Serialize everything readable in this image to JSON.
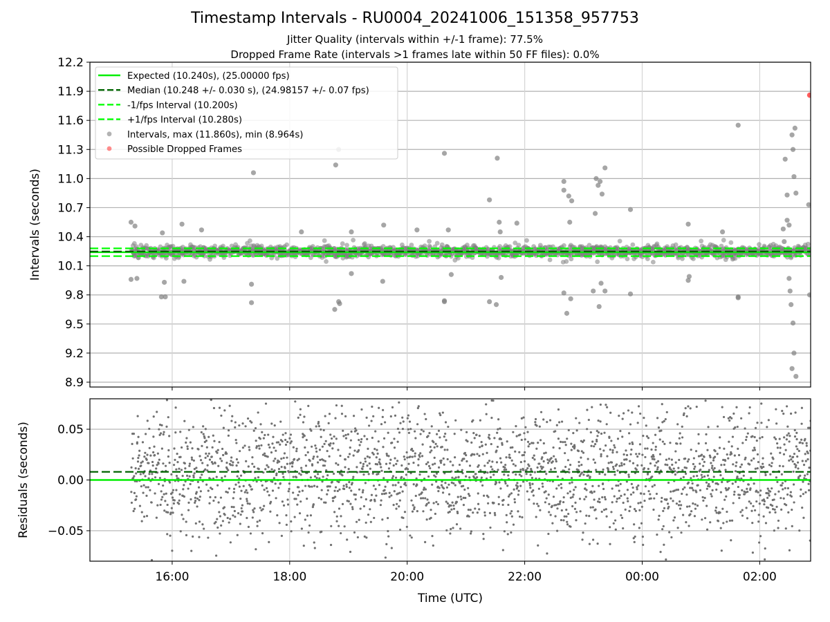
{
  "title": "Timestamp Intervals - RU0004_20241006_151358_957753",
  "subtitle1": "Jitter Quality (intervals within +/-1 frame): 77.5%",
  "subtitle2": "Dropped Frame Rate (intervals >1 frames late within 50 FF files): 0.0%",
  "colors": {
    "expected": "#00ee00",
    "median": "#006400",
    "interval_lines": "#00ff00",
    "points": "#808080",
    "dropped": "#ff4040",
    "grid": "#b0b0b0"
  },
  "chart_data": [
    {
      "type": "scatter",
      "panel": "intervals",
      "ylabel": "Intervals (seconds)",
      "xlabel": "",
      "xlim": [
        "14:36",
        "02:52"
      ],
      "ylim": [
        8.85,
        12.2
      ],
      "yticks": [
        "8.9",
        "9.2",
        "9.5",
        "9.8",
        "10.1",
        "10.4",
        "10.7",
        "11.0",
        "11.3",
        "11.6",
        "11.9",
        "12.2"
      ],
      "grid": true,
      "legend_position": "top-left",
      "legend": [
        {
          "label": "Expected (10.240s), (25.00000 fps)",
          "style": "solid-line",
          "color": "#00ee00"
        },
        {
          "label": "Median (10.248 +/- 0.030 s), (24.98157 +/- 0.07 fps)",
          "style": "dashed-line",
          "color": "#006400"
        },
        {
          "label": "-1/fps Interval (10.200s)",
          "style": "dashed-line",
          "color": "#00ff00"
        },
        {
          "label": "+1/fps Interval (10.280s)",
          "style": "dashed-line",
          "color": "#00ff00"
        },
        {
          "label": "Intervals, max (11.860s), min (8.964s)",
          "style": "marker",
          "color": "#808080"
        },
        {
          "label": "Possible Dropped Frames",
          "style": "marker",
          "color": "#ff4040"
        }
      ],
      "reference_lines": {
        "expected": 10.24,
        "median": 10.248,
        "minus_one_fps": 10.2,
        "plus_one_fps": 10.28
      },
      "outliers": [
        {
          "x": "15:18",
          "y": 10.55
        },
        {
          "x": "15:22",
          "y": 10.51
        },
        {
          "x": "15:18",
          "y": 9.96
        },
        {
          "x": "15:24",
          "y": 9.97
        },
        {
          "x": "15:50",
          "y": 10.44
        },
        {
          "x": "15:52",
          "y": 9.93
        },
        {
          "x": "15:49",
          "y": 9.78
        },
        {
          "x": "15:53",
          "y": 9.78
        },
        {
          "x": "16:10",
          "y": 10.53
        },
        {
          "x": "16:12",
          "y": 9.94
        },
        {
          "x": "16:30",
          "y": 10.47
        },
        {
          "x": "17:23",
          "y": 11.06
        },
        {
          "x": "17:21",
          "y": 9.91
        },
        {
          "x": "17:21",
          "y": 9.72
        },
        {
          "x": "18:12",
          "y": 10.45
        },
        {
          "x": "18:50",
          "y": 11.3
        },
        {
          "x": "18:47",
          "y": 11.14
        },
        {
          "x": "18:50",
          "y": 9.73
        },
        {
          "x": "18:51",
          "y": 9.71
        },
        {
          "x": "18:46",
          "y": 9.65
        },
        {
          "x": "19:03",
          "y": 10.45
        },
        {
          "x": "19:36",
          "y": 10.52
        },
        {
          "x": "19:35",
          "y": 9.94
        },
        {
          "x": "19:03",
          "y": 10.02
        },
        {
          "x": "20:10",
          "y": 10.47
        },
        {
          "x": "20:38",
          "y": 11.26
        },
        {
          "x": "20:42",
          "y": 10.47
        },
        {
          "x": "20:38",
          "y": 9.74
        },
        {
          "x": "20:38",
          "y": 9.73
        },
        {
          "x": "20:45",
          "y": 10.01
        },
        {
          "x": "21:24",
          "y": 10.78
        },
        {
          "x": "21:32",
          "y": 11.21
        },
        {
          "x": "21:34",
          "y": 10.55
        },
        {
          "x": "21:35",
          "y": 10.45
        },
        {
          "x": "21:24",
          "y": 9.73
        },
        {
          "x": "21:31",
          "y": 9.7
        },
        {
          "x": "21:36",
          "y": 9.98
        },
        {
          "x": "21:52",
          "y": 10.54
        },
        {
          "x": "22:40",
          "y": 10.88
        },
        {
          "x": "22:40",
          "y": 10.97
        },
        {
          "x": "22:45",
          "y": 10.82
        },
        {
          "x": "22:48",
          "y": 10.77
        },
        {
          "x": "22:46",
          "y": 10.55
        },
        {
          "x": "22:40",
          "y": 9.82
        },
        {
          "x": "22:43",
          "y": 9.61
        },
        {
          "x": "22:47",
          "y": 9.76
        },
        {
          "x": "23:13",
          "y": 11.0
        },
        {
          "x": "23:15",
          "y": 10.93
        },
        {
          "x": "23:17",
          "y": 10.97
        },
        {
          "x": "23:22",
          "y": 11.11
        },
        {
          "x": "23:19",
          "y": 10.84
        },
        {
          "x": "23:12",
          "y": 10.64
        },
        {
          "x": "23:10",
          "y": 9.84
        },
        {
          "x": "23:16",
          "y": 9.68
        },
        {
          "x": "23:18",
          "y": 9.92
        },
        {
          "x": "23:22",
          "y": 9.84
        },
        {
          "x": "23:48",
          "y": 10.68
        },
        {
          "x": "23:48",
          "y": 9.81
        },
        {
          "x": "00:47",
          "y": 10.53
        },
        {
          "x": "00:48",
          "y": 9.99
        },
        {
          "x": "00:47",
          "y": 9.95
        },
        {
          "x": "01:22",
          "y": 10.45
        },
        {
          "x": "01:38",
          "y": 11.55
        },
        {
          "x": "01:38",
          "y": 9.77
        },
        {
          "x": "01:38",
          "y": 9.78
        },
        {
          "x": "02:24",
          "y": 10.48
        },
        {
          "x": "02:25",
          "y": 10.35
        },
        {
          "x": "02:26",
          "y": 11.2
        },
        {
          "x": "02:28",
          "y": 10.83
        },
        {
          "x": "02:28",
          "y": 10.57
        },
        {
          "x": "02:30",
          "y": 10.52
        },
        {
          "x": "02:30",
          "y": 9.97
        },
        {
          "x": "02:31",
          "y": 9.84
        },
        {
          "x": "02:32",
          "y": 9.7
        },
        {
          "x": "02:33",
          "y": 11.45
        },
        {
          "x": "02:34",
          "y": 11.3
        },
        {
          "x": "02:35",
          "y": 11.02
        },
        {
          "x": "02:36",
          "y": 11.52
        },
        {
          "x": "02:37",
          "y": 10.85
        },
        {
          "x": "02:34",
          "y": 9.51
        },
        {
          "x": "02:35",
          "y": 9.2
        },
        {
          "x": "02:33",
          "y": 9.04
        },
        {
          "x": "02:37",
          "y": 8.96
        },
        {
          "x": "02:50",
          "y": 10.73
        },
        {
          "x": "02:51",
          "y": 9.8
        }
      ],
      "dropped_frames": [
        {
          "x": "02:51",
          "y": 11.86
        }
      ]
    },
    {
      "type": "scatter",
      "panel": "residuals",
      "ylabel": "Residuals (seconds)",
      "xlabel": "Time (UTC)",
      "xlim": [
        "14:36",
        "02:52"
      ],
      "ylim": [
        -0.08,
        0.08
      ],
      "yticks": [
        "−0.05",
        "0.00",
        "0.05"
      ],
      "xticks": [
        "16:00",
        "18:00",
        "20:00",
        "22:00",
        "00:00",
        "02:00"
      ],
      "grid": true,
      "reference_lines": {
        "expected": 0.0,
        "median": 0.008
      },
      "series": [
        {
          "values_note_source": "residual scatter points (approx. 2400), roughly uniform noise between -0.08 and 0.08, densest near 0.0"
        }
      ]
    }
  ]
}
